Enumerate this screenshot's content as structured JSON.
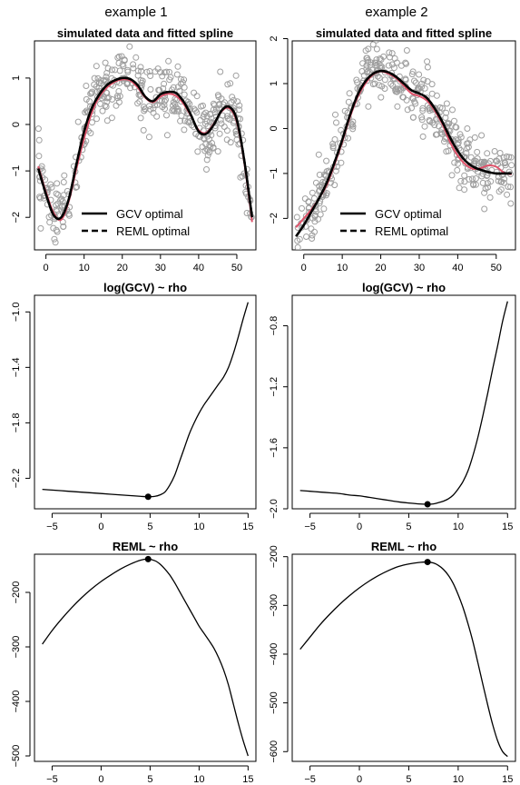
{
  "column_titles": [
    "example 1",
    "example 2"
  ],
  "colors": {
    "points": "#9e9e9e",
    "gcv_line": "#000000",
    "reml_line": "#000000",
    "true_curve": "#df536b",
    "curve": "#000000"
  },
  "chart_data": [
    {
      "id": "p1",
      "type": "scatter",
      "title": "simulated data and fitted spline",
      "xlim": [
        -3,
        55
      ],
      "ylim": [
        -2.7,
        1.8
      ],
      "xticks": [
        0,
        10,
        20,
        30,
        40,
        50
      ],
      "yticks": [
        -2,
        -1,
        0,
        1
      ],
      "legend": {
        "placement": "bottom-center",
        "entries": [
          "GCV optimal",
          "REML optimal"
        ]
      },
      "series": [
        {
          "name": "GCV optimal",
          "style": "solid",
          "x": [
            -2,
            0,
            2,
            4,
            6,
            8,
            10,
            12,
            14,
            16,
            18,
            20,
            22,
            24,
            26,
            28,
            30,
            32,
            34,
            36,
            38,
            40,
            42,
            44,
            46,
            48,
            50,
            52,
            54
          ],
          "y": [
            -0.95,
            -1.5,
            -1.95,
            -2.0,
            -1.6,
            -0.85,
            -0.15,
            0.35,
            0.65,
            0.85,
            0.95,
            1.0,
            0.98,
            0.85,
            0.6,
            0.5,
            0.65,
            0.7,
            0.68,
            0.5,
            0.2,
            -0.15,
            -0.2,
            0.0,
            0.3,
            0.38,
            0.1,
            -0.8,
            -2.0
          ]
        },
        {
          "name": "REML optimal",
          "style": "dashed",
          "x": [
            -2,
            0,
            2,
            4,
            6,
            8,
            10,
            12,
            14,
            16,
            18,
            20,
            22,
            24,
            26,
            28,
            30,
            32,
            34,
            36,
            38,
            40,
            42,
            44,
            46,
            48,
            50,
            52,
            54
          ],
          "y": [
            -0.95,
            -1.5,
            -1.95,
            -2.0,
            -1.6,
            -0.85,
            -0.15,
            0.35,
            0.65,
            0.85,
            0.95,
            1.0,
            0.98,
            0.85,
            0.6,
            0.5,
            0.65,
            0.7,
            0.68,
            0.5,
            0.2,
            -0.15,
            -0.2,
            0.0,
            0.3,
            0.38,
            0.1,
            -0.8,
            -2.0
          ]
        },
        {
          "style": "true",
          "x": [
            -2,
            0,
            2,
            4,
            6,
            8,
            10,
            12,
            14,
            16,
            18,
            20,
            22,
            24,
            26,
            28,
            30,
            32,
            34,
            36,
            38,
            40,
            42,
            44,
            46,
            48,
            50,
            52,
            54
          ],
          "y": [
            -0.9,
            -1.45,
            -1.9,
            -2.05,
            -1.65,
            -0.95,
            -0.3,
            0.25,
            0.6,
            0.8,
            0.92,
            0.97,
            0.95,
            0.8,
            0.58,
            0.48,
            0.6,
            0.66,
            0.62,
            0.45,
            0.18,
            -0.12,
            -0.18,
            0.02,
            0.28,
            0.35,
            0.05,
            -0.85,
            -2.1
          ]
        }
      ]
    },
    {
      "id": "p2",
      "type": "scatter",
      "title": "simulated data and fitted spline",
      "xlim": [
        -3,
        55
      ],
      "ylim": [
        -2.7,
        1.95
      ],
      "xticks": [
        0,
        10,
        20,
        30,
        40,
        50
      ],
      "yticks": [
        -2,
        -1,
        0,
        1,
        2
      ],
      "legend": {
        "placement": "bottom-center",
        "entries": [
          "GCV optimal",
          "REML optimal"
        ]
      },
      "series": [
        {
          "name": "GCV optimal",
          "style": "solid",
          "x": [
            -2,
            0,
            2,
            4,
            6,
            8,
            10,
            12,
            14,
            16,
            18,
            20,
            22,
            24,
            26,
            28,
            30,
            32,
            34,
            36,
            38,
            40,
            42,
            44,
            46,
            48,
            50,
            52,
            54
          ],
          "y": [
            -2.4,
            -2.15,
            -1.85,
            -1.55,
            -1.2,
            -0.75,
            -0.25,
            0.3,
            0.75,
            1.05,
            1.22,
            1.28,
            1.25,
            1.15,
            1.0,
            0.85,
            0.78,
            0.68,
            0.45,
            0.15,
            -0.2,
            -0.5,
            -0.72,
            -0.85,
            -0.92,
            -0.97,
            -1.0,
            -1.0,
            -1.0
          ]
        },
        {
          "name": "REML optimal",
          "style": "dashed",
          "x": [
            -2,
            0,
            2,
            4,
            6,
            8,
            10,
            12,
            14,
            16,
            18,
            20,
            22,
            24,
            26,
            28,
            30,
            32,
            34,
            36,
            38,
            40,
            42,
            44,
            46,
            48,
            50,
            52,
            54
          ],
          "y": [
            -2.4,
            -2.15,
            -1.85,
            -1.55,
            -1.2,
            -0.75,
            -0.25,
            0.3,
            0.75,
            1.05,
            1.22,
            1.28,
            1.25,
            1.15,
            1.0,
            0.85,
            0.78,
            0.68,
            0.45,
            0.15,
            -0.2,
            -0.5,
            -0.72,
            -0.85,
            -0.92,
            -0.97,
            -1.0,
            -1.0,
            -1.0
          ]
        },
        {
          "style": "true",
          "x": [
            -2,
            0,
            2,
            4,
            6,
            8,
            10,
            12,
            14,
            16,
            18,
            20,
            22,
            24,
            26,
            28,
            30,
            32,
            34,
            36,
            38,
            40,
            42,
            44,
            46,
            48,
            50,
            52,
            54
          ],
          "y": [
            -2.2,
            -2.0,
            -1.8,
            -1.55,
            -1.25,
            -0.8,
            -0.3,
            0.25,
            0.7,
            1.0,
            1.2,
            1.27,
            1.22,
            1.12,
            0.95,
            0.78,
            0.72,
            0.62,
            0.4,
            0.1,
            -0.3,
            -0.6,
            -0.8,
            -0.9,
            -0.88,
            -0.82,
            -0.85,
            -0.98,
            -1.02
          ]
        }
      ]
    },
    {
      "id": "p3",
      "type": "line",
      "title": "log(GCV) ~ rho",
      "xlim": [
        -6.8,
        15.8
      ],
      "ylim": [
        -2.42,
        -0.88
      ],
      "xticks": [
        -5,
        0,
        5,
        10,
        15
      ],
      "yticks": [
        -2.2,
        -1.8,
        -1.4,
        -1.0
      ],
      "ytick_labels": [
        "-2.2",
        "-1.8",
        "-1.4",
        "-1.0"
      ],
      "x": [
        -6,
        -5,
        -4,
        -3,
        -2,
        -1,
        0,
        1,
        2,
        3,
        4,
        4.8,
        5.5,
        6,
        6.5,
        7,
        7.5,
        8,
        8.5,
        9,
        9.5,
        10,
        10.5,
        11,
        11.5,
        12,
        12.5,
        13,
        13.5,
        14,
        14.5,
        15
      ],
      "y": [
        -2.28,
        -2.285,
        -2.29,
        -2.295,
        -2.3,
        -2.305,
        -2.31,
        -2.315,
        -2.32,
        -2.325,
        -2.33,
        -2.333,
        -2.33,
        -2.32,
        -2.3,
        -2.25,
        -2.18,
        -2.08,
        -1.98,
        -1.88,
        -1.8,
        -1.73,
        -1.67,
        -1.62,
        -1.57,
        -1.52,
        -1.47,
        -1.4,
        -1.3,
        -1.18,
        -1.05,
        -0.93
      ],
      "optimum": {
        "x": 4.8,
        "y": -2.333
      }
    },
    {
      "id": "p4",
      "type": "line",
      "title": "log(GCV) ~ rho",
      "xlim": [
        -6.8,
        15.8
      ],
      "ylim": [
        -2.0,
        -0.6
      ],
      "xticks": [
        -5,
        0,
        5,
        10,
        15
      ],
      "yticks": [
        -2.0,
        -1.6,
        -1.2,
        -0.8
      ],
      "ytick_labels": [
        "-2.0",
        "-1.6",
        "-1.2",
        "-0.8"
      ],
      "x": [
        -6,
        -5,
        -4,
        -3,
        -2,
        -1,
        0,
        1,
        2,
        3,
        4,
        5,
        6,
        6.9,
        7.5,
        8,
        8.5,
        9,
        9.5,
        10,
        10.5,
        11,
        11.5,
        12,
        12.5,
        13,
        13.5,
        14,
        14.5,
        15
      ],
      "y": [
        -1.88,
        -1.885,
        -1.89,
        -1.895,
        -1.9,
        -1.91,
        -1.915,
        -1.925,
        -1.935,
        -1.945,
        -1.955,
        -1.962,
        -1.968,
        -1.97,
        -1.968,
        -1.96,
        -1.95,
        -1.935,
        -1.91,
        -1.87,
        -1.82,
        -1.75,
        -1.65,
        -1.53,
        -1.39,
        -1.24,
        -1.08,
        -0.93,
        -0.77,
        -0.64
      ],
      "optimum": {
        "x": 6.9,
        "y": -1.97
      }
    },
    {
      "id": "p5",
      "type": "line",
      "title": "REML ~ rho",
      "xlim": [
        -6.8,
        15.8
      ],
      "ylim": [
        -510,
        -130
      ],
      "xticks": [
        -5,
        0,
        5,
        10,
        15
      ],
      "yticks": [
        -500,
        -400,
        -300,
        -200
      ],
      "ytick_labels": [
        "-500",
        "-400",
        "-300",
        "-200"
      ],
      "x": [
        -6,
        -5,
        -4,
        -3,
        -2,
        -1,
        0,
        1,
        2,
        3,
        4,
        4.8,
        5.5,
        6,
        6.5,
        7,
        7.5,
        8,
        8.5,
        9,
        9.5,
        10,
        10.5,
        11,
        11.5,
        12,
        12.5,
        13,
        13.5,
        14,
        14.5,
        15
      ],
      "y": [
        -295,
        -270,
        -248,
        -228,
        -210,
        -194,
        -180,
        -168,
        -157,
        -148,
        -141,
        -139,
        -142,
        -148,
        -157,
        -168,
        -182,
        -198,
        -214,
        -230,
        -246,
        -262,
        -275,
        -288,
        -302,
        -320,
        -342,
        -370,
        -405,
        -440,
        -472,
        -500
      ],
      "optimum": {
        "x": 4.8,
        "y": -139
      }
    },
    {
      "id": "p6",
      "type": "line",
      "title": "REML ~ rho",
      "xlim": [
        -6.8,
        15.8
      ],
      "ylim": [
        -620,
        -195
      ],
      "xticks": [
        -5,
        0,
        5,
        10,
        15
      ],
      "yticks": [
        -600,
        -500,
        -400,
        -300,
        -200
      ],
      "ytick_labels": [
        "-600",
        "-500",
        "-400",
        "-300",
        "-200"
      ],
      "x": [
        -6,
        -5,
        -4,
        -3,
        -2,
        -1,
        0,
        1,
        2,
        3,
        4,
        5,
        6,
        6.9,
        7.5,
        8,
        8.5,
        9,
        9.5,
        10,
        10.5,
        11,
        11.5,
        12,
        12.5,
        13,
        13.5,
        14,
        14.5,
        15
      ],
      "y": [
        -390,
        -365,
        -340,
        -318,
        -298,
        -280,
        -264,
        -250,
        -238,
        -228,
        -220,
        -215,
        -212,
        -211,
        -213,
        -218,
        -226,
        -238,
        -255,
        -278,
        -305,
        -338,
        -375,
        -418,
        -462,
        -505,
        -545,
        -578,
        -600,
        -610
      ],
      "optimum": {
        "x": 6.9,
        "y": -211
      }
    }
  ]
}
